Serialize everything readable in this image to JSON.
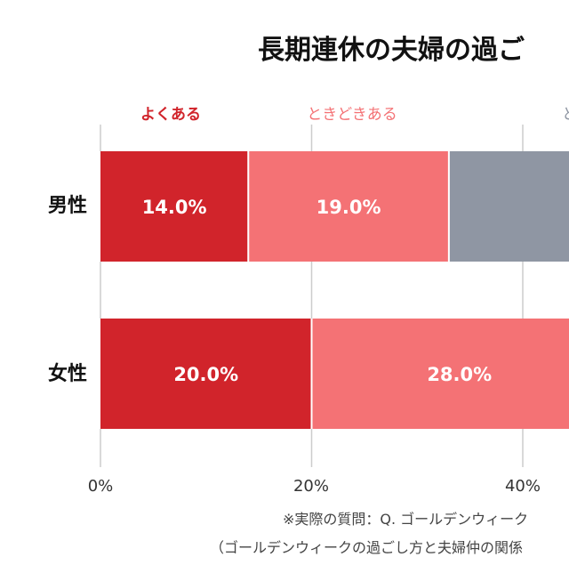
{
  "colors": {
    "often": "#d1242b",
    "sometimes": "#f47275",
    "gray": "#8f96a3",
    "grid": "#cccccc",
    "title": "#111111",
    "footnote": "#444444",
    "axis_text": "#333333"
  },
  "chart_data": {
    "type": "bar",
    "orientation": "horizontal-stacked",
    "title": "長期連休の夫婦の過ご",
    "categories": [
      "男性",
      "女性"
    ],
    "series": [
      {
        "name": "よくある",
        "values": [
          14.0,
          20.0
        ],
        "labels": [
          "14.0%",
          "20.0%"
        ],
        "color": "#d1242b"
      },
      {
        "name": "ときどきある",
        "values": [
          19.0,
          28.0
        ],
        "labels": [
          "19.0%",
          "28.0%"
        ],
        "color": "#f47275"
      },
      {
        "name": "と",
        "values": [
          null,
          null
        ],
        "labels": [
          "",
          ""
        ],
        "color": "#8f96a3"
      }
    ],
    "xticks": [
      "0%",
      "20%",
      "40%"
    ],
    "xlim": [
      0,
      100
    ],
    "grid": true,
    "legend_position": "top",
    "footnotes": [
      "※実際の質問：Q. ゴールデンウィーク",
      "（ゴールデンウィークの過ごし方と夫婦仲の関係"
    ]
  }
}
